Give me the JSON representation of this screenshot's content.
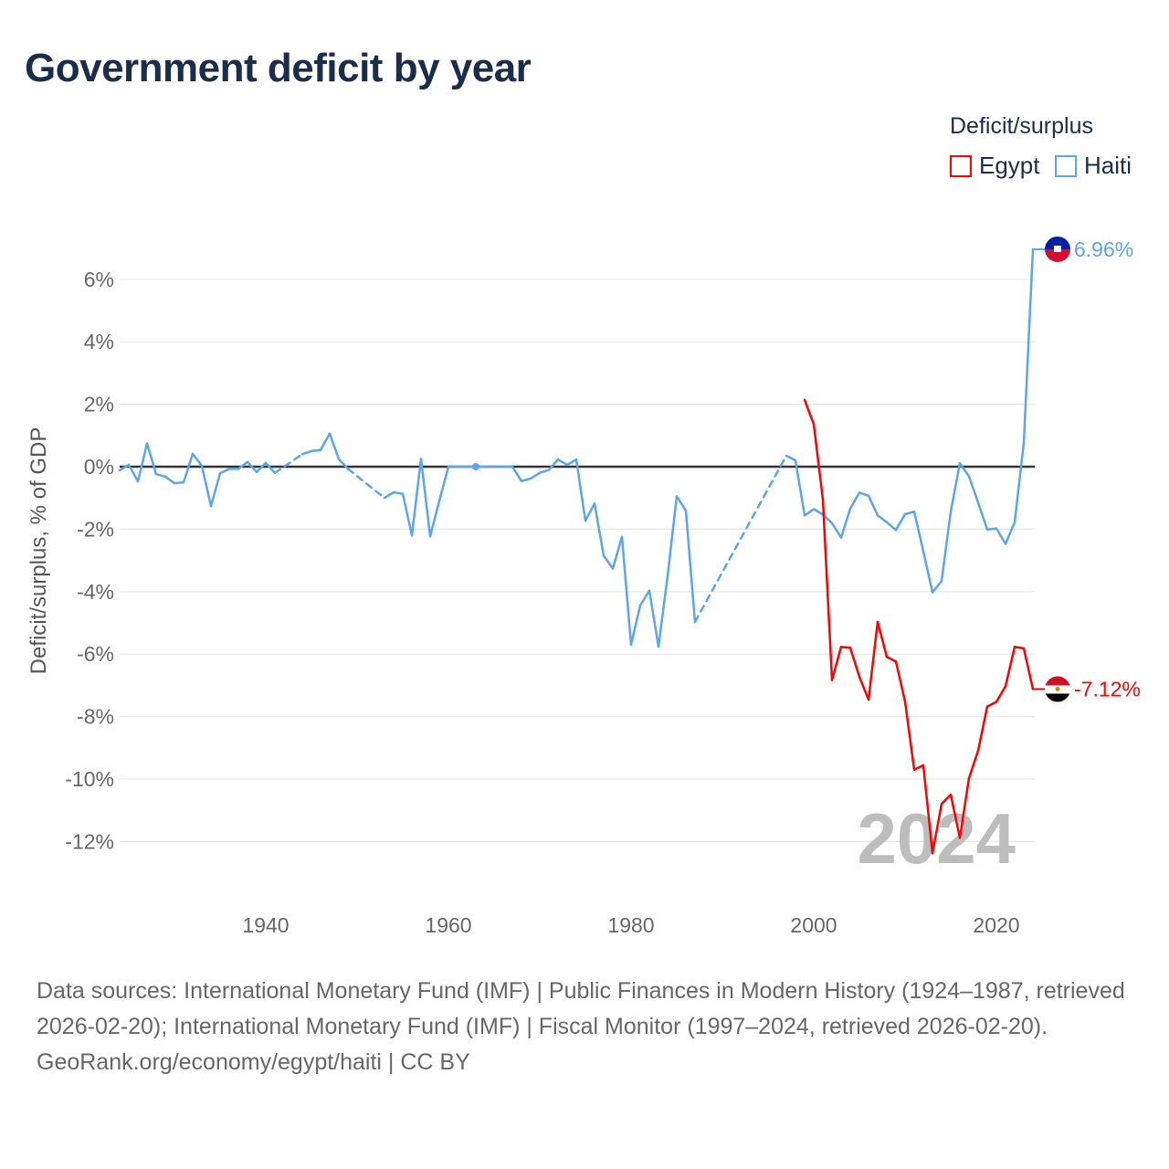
{
  "title": "Government deficit by year",
  "legend": {
    "title": "Deficit/surplus",
    "items": [
      {
        "label": "Egypt",
        "color": "#ff0000"
      },
      {
        "label": "Haiti",
        "color": "#5aa5ec"
      }
    ]
  },
  "year_watermark": "2024",
  "footer": {
    "sources": "Data sources: International Monetary Fund (IMF) | Public Finances in Modern History (1924–1987, retrieved 2026-02-20); International Monetary Fund (IMF) | Fiscal Monitor (1997–2024, retrieved 2026-02-20).",
    "credit": "GeoRank.org/economy/egypt/haiti | CC BY"
  },
  "chart_data": {
    "type": "line",
    "title": "Government deficit by year",
    "xlabel": "",
    "ylabel": "Deficit/surplus, % of GDP",
    "xlim": [
      1924,
      2024
    ],
    "ylim": [
      -12.5,
      7
    ],
    "xticks": [
      1940,
      1960,
      1980,
      2000,
      2020
    ],
    "yticks": [
      6,
      4,
      2,
      0,
      -2,
      -4,
      -6,
      -8,
      -10,
      -12
    ],
    "ytick_labels": [
      "6%",
      "4%",
      "2%",
      "0%",
      "-2%",
      "-4%",
      "-6%",
      "-8%",
      "-10%",
      "-12%"
    ],
    "xtick_labels": [
      "1940",
      "1960",
      "1980",
      "2000",
      "2020"
    ],
    "series": [
      {
        "name": "Haiti",
        "color": "#5aa5ec",
        "end_label": "6.96%",
        "points": [
          [
            1924,
            -0.12
          ],
          [
            1925,
            0.06
          ],
          [
            1926,
            -0.47
          ],
          [
            1927,
            0.74
          ],
          [
            1928,
            -0.24
          ],
          [
            1929,
            -0.32
          ],
          [
            1930,
            -0.53
          ],
          [
            1931,
            -0.5
          ],
          [
            1932,
            0.41
          ],
          [
            1933,
            0.03
          ],
          [
            1934,
            -1.26
          ],
          [
            1935,
            -0.21
          ],
          [
            1936,
            -0.07
          ],
          [
            1937,
            -0.07
          ],
          [
            1938,
            0.15
          ],
          [
            1939,
            -0.17
          ],
          [
            1940,
            0.12
          ],
          [
            1941,
            -0.2
          ],
          [
            1944,
            0.4
          ],
          [
            1945,
            0.5
          ],
          [
            1946,
            0.53
          ],
          [
            1947,
            1.06
          ],
          [
            1948,
            0.24
          ],
          [
            1949,
            -0.07
          ],
          [
            1953,
            -1.0
          ],
          [
            1954,
            -0.82
          ],
          [
            1955,
            -0.87
          ],
          [
            1956,
            -2.2
          ],
          [
            1957,
            0.25
          ],
          [
            1958,
            -2.23
          ],
          [
            1959,
            -1.1
          ],
          [
            1960,
            0
          ],
          [
            1961,
            0
          ],
          [
            1962,
            0
          ],
          [
            1963,
            0
          ],
          [
            1964,
            0
          ],
          [
            1965,
            0
          ],
          [
            1966,
            0
          ],
          [
            1967,
            0
          ],
          [
            1968,
            -0.46
          ],
          [
            1969,
            -0.38
          ],
          [
            1970,
            -0.2
          ],
          [
            1971,
            -0.1
          ],
          [
            1972,
            0.23
          ],
          [
            1973,
            0.06
          ],
          [
            1974,
            0.23
          ],
          [
            1975,
            -1.73
          ],
          [
            1976,
            -1.18
          ],
          [
            1977,
            -2.85
          ],
          [
            1978,
            -3.26
          ],
          [
            1979,
            -2.25
          ],
          [
            1980,
            -5.7
          ],
          [
            1981,
            -4.44
          ],
          [
            1982,
            -3.97
          ],
          [
            1983,
            -5.76
          ],
          [
            1984,
            -3.5
          ],
          [
            1985,
            -0.95
          ],
          [
            1986,
            -1.41
          ],
          [
            1987,
            -4.97
          ],
          [
            1997,
            0.35
          ],
          [
            1998,
            0.2
          ],
          [
            1999,
            -1.56
          ],
          [
            2000,
            -1.36
          ],
          [
            2001,
            -1.53
          ],
          [
            2002,
            -1.81
          ],
          [
            2003,
            -2.27
          ],
          [
            2004,
            -1.34
          ],
          [
            2005,
            -0.83
          ],
          [
            2006,
            -0.93
          ],
          [
            2007,
            -1.56
          ],
          [
            2008,
            -1.78
          ],
          [
            2009,
            -2.03
          ],
          [
            2010,
            -1.52
          ],
          [
            2011,
            -1.44
          ],
          [
            2012,
            -2.71
          ],
          [
            2013,
            -4.02
          ],
          [
            2014,
            -3.66
          ],
          [
            2015,
            -1.44
          ],
          [
            2016,
            0.11
          ],
          [
            2017,
            -0.31
          ],
          [
            2018,
            -1.15
          ],
          [
            2019,
            -2.01
          ],
          [
            2020,
            -1.98
          ],
          [
            2021,
            -2.47
          ],
          [
            2022,
            -1.78
          ],
          [
            2023,
            0.76
          ],
          [
            2024,
            6.96
          ]
        ]
      },
      {
        "name": "Egypt",
        "color": "#ff0000",
        "end_label": "-7.12%",
        "points": [
          [
            1999,
            2.14
          ],
          [
            2000,
            1.36
          ],
          [
            2001,
            -1.05
          ],
          [
            2002,
            -6.83
          ],
          [
            2003,
            -5.77
          ],
          [
            2004,
            -5.8
          ],
          [
            2005,
            -6.73
          ],
          [
            2006,
            -7.46
          ],
          [
            2007,
            -4.97
          ],
          [
            2008,
            -6.09
          ],
          [
            2009,
            -6.24
          ],
          [
            2010,
            -7.52
          ],
          [
            2011,
            -9.7
          ],
          [
            2012,
            -9.56
          ],
          [
            2013,
            -12.38
          ],
          [
            2014,
            -10.8
          ],
          [
            2015,
            -10.5
          ],
          [
            2016,
            -11.88
          ],
          [
            2017,
            -9.97
          ],
          [
            2018,
            -9.09
          ],
          [
            2019,
            -7.68
          ],
          [
            2020,
            -7.53
          ],
          [
            2021,
            -7.03
          ],
          [
            2022,
            -5.77
          ],
          [
            2023,
            -5.82
          ],
          [
            2024,
            -7.12
          ]
        ]
      }
    ],
    "highlight_point": [
      1963,
      0
    ],
    "legend_position": "top-right",
    "grid": true
  }
}
